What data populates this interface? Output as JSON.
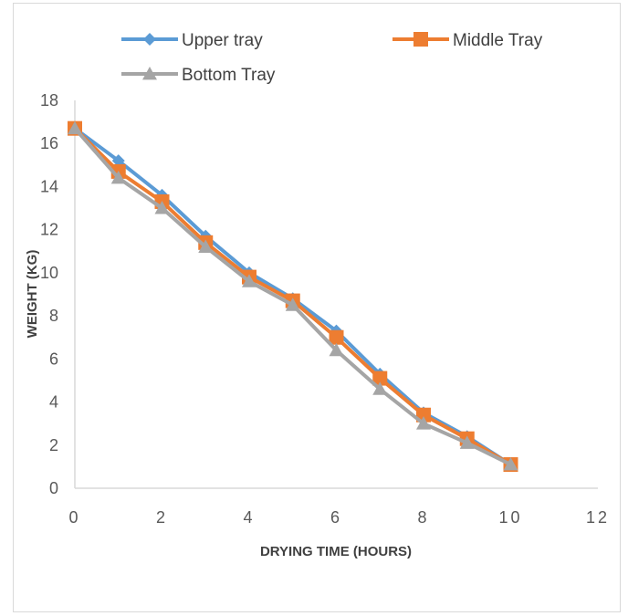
{
  "chart_data": {
    "type": "line",
    "title": "",
    "xlabel": "DRYING TIME (HOURS)",
    "ylabel": "WEIGHT (KG)",
    "xlim": [
      0,
      12
    ],
    "ylim": [
      0,
      18
    ],
    "x_ticks": [
      "0",
      "2",
      "4",
      "6",
      "8",
      "10",
      "12"
    ],
    "y_ticks": [
      "0",
      "2",
      "4",
      "6",
      "8",
      "10",
      "12",
      "14",
      "16",
      "18"
    ],
    "x": [
      0,
      1,
      2,
      3,
      4,
      5,
      6,
      7,
      8,
      9,
      10
    ],
    "legend_position": "top",
    "grid": false,
    "series": [
      {
        "name": "Upper tray",
        "color": "#5b9bd5",
        "marker": "diamond",
        "values": [
          16.7,
          15.2,
          13.6,
          11.7,
          10.0,
          8.8,
          7.3,
          5.3,
          3.5,
          2.4,
          1.1
        ]
      },
      {
        "name": "Middle Tray",
        "color": "#ed7d31",
        "marker": "square",
        "values": [
          16.7,
          14.7,
          13.3,
          11.4,
          9.8,
          8.7,
          7.0,
          5.1,
          3.4,
          2.3,
          1.1
        ]
      },
      {
        "name": "Bottom Tray",
        "color": "#a5a5a5",
        "marker": "triangle",
        "values": [
          16.7,
          14.4,
          13.0,
          11.2,
          9.6,
          8.5,
          6.4,
          4.6,
          3.0,
          2.1,
          1.1
        ]
      }
    ]
  }
}
